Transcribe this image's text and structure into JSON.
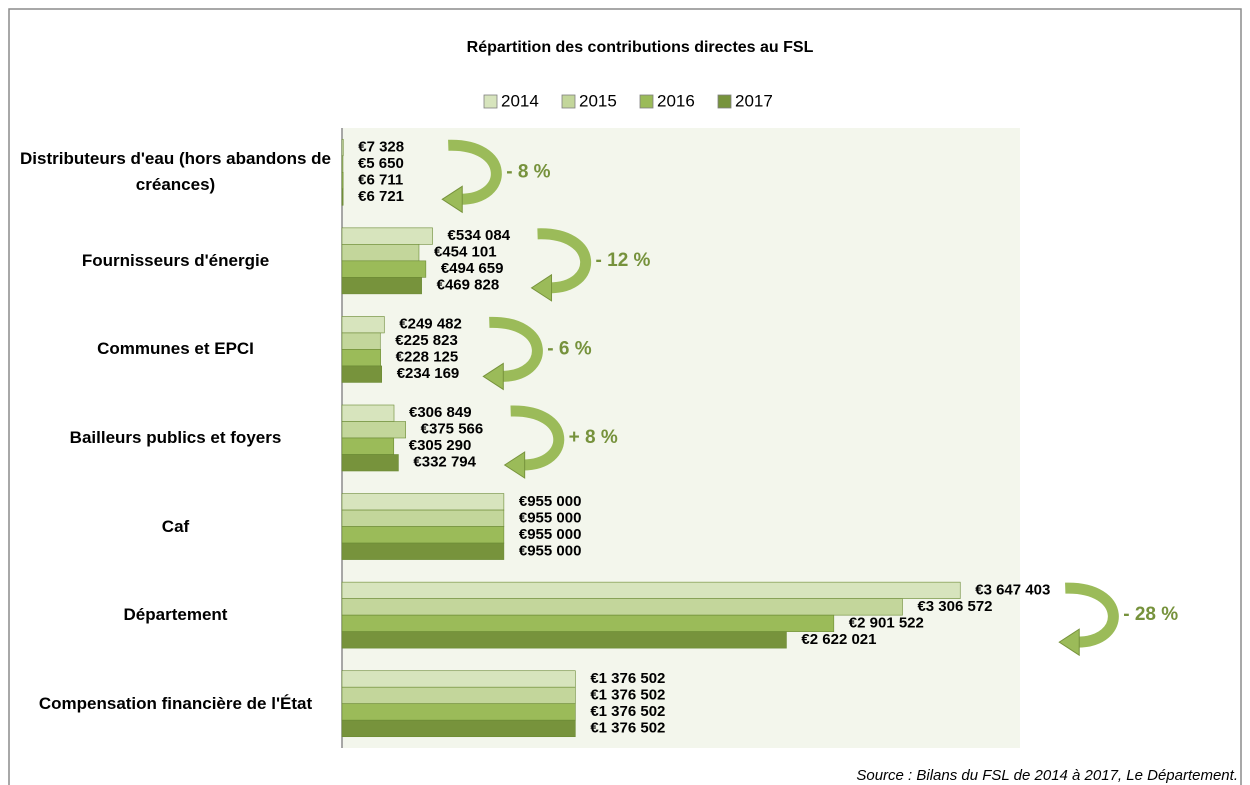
{
  "chart_data": {
    "type": "bar",
    "orientation": "horizontal",
    "title": "Répartition des contributions directes au FSL",
    "categories": [
      "Distributeurs d'eau (hors abandons de créances)",
      "Fournisseurs d'énergie",
      "Communes et EPCI",
      "Bailleurs publics et foyers",
      "Caf",
      "Département",
      "Compensation financière de l'État"
    ],
    "series": [
      {
        "name": "2014",
        "color": "#d7e4bd",
        "values": [
          7328,
          534084,
          249482,
          306849,
          955000,
          3647403,
          1376502
        ],
        "value_labels": [
          "€7 328",
          "€534 084",
          "€249 482",
          "€306 849",
          "€955 000",
          "€3 647 403",
          "€1 376 502"
        ]
      },
      {
        "name": "2015",
        "color": "#c3d69b",
        "values": [
          5650,
          454101,
          225823,
          375566,
          955000,
          3306572,
          1376502
        ],
        "value_labels": [
          "€5 650",
          "€454 101",
          "€225 823",
          "€375 566",
          "€955 000",
          "€3 306 572",
          "€1 376 502"
        ]
      },
      {
        "name": "2016",
        "color": "#9bbb59",
        "values": [
          6711,
          494659,
          228125,
          305290,
          955000,
          2901522,
          1376502
        ],
        "value_labels": [
          "€6 711",
          "€494 659",
          "€228 125",
          "€305 290",
          "€955 000",
          "€2 901 522",
          "€1 376 502"
        ]
      },
      {
        "name": "2017",
        "color": "#77933c",
        "values": [
          6721,
          469828,
          234169,
          332794,
          955000,
          2622021,
          1376502
        ],
        "value_labels": [
          "€6 721",
          "€469 828",
          "€234 169",
          "€332 794",
          "€955 000",
          "€2 622 021",
          "€1 376 502"
        ]
      }
    ],
    "annotations": [
      "- 8 %",
      "- 12 %",
      "- 6 %",
      "+ 8 %",
      null,
      "- 28 %",
      null
    ],
    "xlim": [
      0,
      4000000
    ],
    "legend": "top",
    "source": "Source : Bilans du FSL de 2014 à 2017, Le Département."
  }
}
